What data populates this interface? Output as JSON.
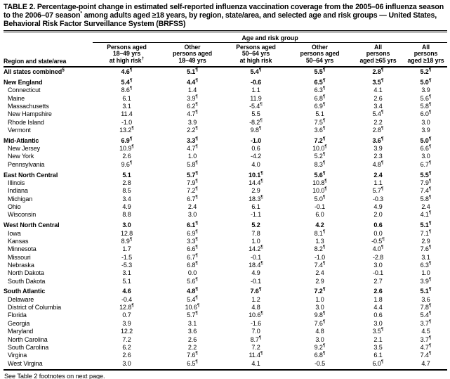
{
  "title": "TABLE 2. Percentage-point change in estimated self-reported influenza vaccination coverage from the 2005–06 influenza season to the 2006–07 season* among adults aged ≥18 years, by region, state/area, and selected age and risk groups — United States, Behavioral Risk Factor Surveillance System (BRFSS)",
  "footer": "See Table 2 footnotes on next page.",
  "table": {
    "group_header": "Age and risk group",
    "row_header": "Region and state/area",
    "columns": [
      [
        "Persons aged",
        "18–49 yrs",
        "at high risk†"
      ],
      [
        "Other",
        "persons aged",
        "18–49 yrs"
      ],
      [
        "Persons aged",
        "50–64 yrs",
        "at high risk"
      ],
      [
        "Other",
        "persons aged",
        "50–64 yrs"
      ],
      [
        "All",
        "persons",
        "aged ≥65 yrs"
      ],
      [
        "All",
        "persons",
        "aged ≥18 yrs"
      ]
    ],
    "rows": [
      {
        "label": "All states combined§",
        "bold": true,
        "gap": false,
        "values": [
          "4.6¶",
          "5.1¶",
          "5.4¶",
          "5.5¶",
          "2.8¶",
          "5.2¶"
        ]
      },
      {
        "label": "New England",
        "bold": true,
        "gap": true,
        "values": [
          "5.4¶",
          "4.4¶",
          "-0.6",
          "6.5¶",
          "3.5¶",
          "5.0¶"
        ]
      },
      {
        "label": "Connecticut",
        "bold": false,
        "gap": false,
        "values": [
          "8.6¶",
          "1.4",
          "1.1",
          "6.3¶",
          "4.1",
          "3.9"
        ]
      },
      {
        "label": "Maine",
        "bold": false,
        "gap": false,
        "values": [
          "6.1",
          "3.9¶",
          "11.9",
          "6.8¶",
          "2.6",
          "5.6¶"
        ]
      },
      {
        "label": "Massachusetts",
        "bold": false,
        "gap": false,
        "values": [
          "3.1",
          "6.2¶",
          "-5.4¶",
          "6.9¶",
          "3.4",
          "5.8¶"
        ]
      },
      {
        "label": "New Hampshire",
        "bold": false,
        "gap": false,
        "values": [
          "11.4",
          "4.7¶",
          "5.5",
          "5.1",
          "5.4¶",
          "6.0¶"
        ]
      },
      {
        "label": "Rhode Island",
        "bold": false,
        "gap": false,
        "values": [
          "-1.0",
          "3.9",
          "-8.2¶",
          "7.5¶",
          "2.2",
          "3.0"
        ]
      },
      {
        "label": "Vermont",
        "bold": false,
        "gap": false,
        "values": [
          "13.2¶",
          "2.2¶",
          "9.8¶",
          "3.6¶",
          "2.8¶",
          "3.9"
        ]
      },
      {
        "label": "Mid-Atlantic",
        "bold": true,
        "gap": true,
        "values": [
          "6.9¶",
          "3.3¶",
          "-1.0",
          "7.2¶",
          "3.6¶",
          "5.0¶"
        ]
      },
      {
        "label": "New Jersey",
        "bold": false,
        "gap": false,
        "values": [
          "10.9¶",
          "4.7¶",
          "0.6",
          "10.0¶",
          "3.9",
          "6.6¶"
        ]
      },
      {
        "label": "New York",
        "bold": false,
        "gap": false,
        "values": [
          "2.6",
          "1.0",
          "-4.2",
          "5.2¶",
          "2.3",
          "3.0"
        ]
      },
      {
        "label": "Pennsylvania",
        "bold": false,
        "gap": false,
        "values": [
          "9.6¶",
          "5.8¶",
          "4.0",
          "8.3¶",
          "4.8¶",
          "6.7¶"
        ]
      },
      {
        "label": "East North Central",
        "bold": true,
        "gap": true,
        "values": [
          "5.1",
          "5.7¶",
          "10.1¶",
          "5.6¶",
          "2.4",
          "5.5¶"
        ]
      },
      {
        "label": "Illinois",
        "bold": false,
        "gap": false,
        "values": [
          "2.8",
          "7.9¶",
          "14.4¶",
          "10.8¶",
          "1.1",
          "7.9¶"
        ]
      },
      {
        "label": "Indiana",
        "bold": false,
        "gap": false,
        "values": [
          "8.5",
          "7.2¶",
          "2.9",
          "10.0¶",
          "5.7¶",
          "7.4¶"
        ]
      },
      {
        "label": "Michigan",
        "bold": false,
        "gap": false,
        "values": [
          "3.4",
          "6.7¶",
          "18.3¶",
          "5.0¶",
          "-0.3",
          "5.8¶"
        ]
      },
      {
        "label": "Ohio",
        "bold": false,
        "gap": false,
        "values": [
          "4.9",
          "2.4",
          "6.1",
          "-0.1",
          "4.9",
          "2.4"
        ]
      },
      {
        "label": "Wisconsin",
        "bold": false,
        "gap": false,
        "values": [
          "8.8",
          "3.0",
          "-1.1",
          "6.0",
          "2.0",
          "4.1¶"
        ]
      },
      {
        "label": "West North Central",
        "bold": true,
        "gap": true,
        "values": [
          "3.0",
          "6.1¶",
          "5.2",
          "4.2",
          "0.6",
          "5.1¶"
        ]
      },
      {
        "label": "Iowa",
        "bold": false,
        "gap": false,
        "values": [
          "12.8",
          "6.9¶",
          "7.8",
          "8.1¶",
          "0.0",
          "7.1¶"
        ]
      },
      {
        "label": "Kansas",
        "bold": false,
        "gap": false,
        "values": [
          "8.9¶",
          "3.3¶",
          "1.0",
          "1.3",
          "-0.5¶",
          "2.9"
        ]
      },
      {
        "label": "Minnesota",
        "bold": false,
        "gap": false,
        "values": [
          "1.7",
          "6.6¶",
          "14.2¶",
          "8.2¶",
          "4.0¶",
          "7.6¶"
        ]
      },
      {
        "label": "Missouri",
        "bold": false,
        "gap": false,
        "values": [
          "-1.5",
          "6.7¶",
          "-0.1",
          "-1.0",
          "-2.8",
          "3.1"
        ]
      },
      {
        "label": "Nebraska",
        "bold": false,
        "gap": false,
        "values": [
          "-5.3",
          "6.8¶",
          "18.4¶",
          "7.4¶",
          "3.0",
          "6.3¶"
        ]
      },
      {
        "label": "North Dakota",
        "bold": false,
        "gap": false,
        "values": [
          "3.1",
          "0.0",
          "4.9",
          "2.4",
          "-0.1",
          "1.0"
        ]
      },
      {
        "label": "South Dakota",
        "bold": false,
        "gap": false,
        "values": [
          "5.1",
          "5.6¶",
          "-0.1",
          "2.9",
          "2.7",
          "3.9¶"
        ]
      },
      {
        "label": "South Atlantic",
        "bold": true,
        "gap": true,
        "values": [
          "4.6",
          "4.8¶",
          "7.6¶",
          "7.2¶",
          "2.6",
          "5.1¶"
        ]
      },
      {
        "label": "Delaware",
        "bold": false,
        "gap": false,
        "values": [
          "-0.4",
          "5.4¶",
          "1.2",
          "1.0",
          "1.8",
          "3.6"
        ]
      },
      {
        "label": "District of Columbia",
        "bold": false,
        "gap": false,
        "values": [
          "12.8¶",
          "10.6¶",
          "4.8",
          "3.0",
          "4.4",
          "7.8¶"
        ]
      },
      {
        "label": "Florida",
        "bold": false,
        "gap": false,
        "values": [
          "0.7",
          "5.7¶",
          "10.6¶",
          "9.8¶",
          "0.6",
          "5.4¶"
        ]
      },
      {
        "label": "Georgia",
        "bold": false,
        "gap": false,
        "values": [
          "3.9",
          "3.1",
          "-1.6",
          "7.6¶",
          "3.0",
          "3.7¶"
        ]
      },
      {
        "label": "Maryland",
        "bold": false,
        "gap": false,
        "values": [
          "12.2",
          "3.6",
          "7.0",
          "4.8",
          "3.5¶",
          "4.5"
        ]
      },
      {
        "label": "North Carolina",
        "bold": false,
        "gap": false,
        "values": [
          "7.2",
          "2.6",
          "8.7¶",
          "3.0",
          "2.1",
          "3.7¶"
        ]
      },
      {
        "label": "South Carolina",
        "bold": false,
        "gap": false,
        "values": [
          "6.2",
          "2.2",
          "7.2",
          "9.2¶",
          "3.5",
          "4.7¶"
        ]
      },
      {
        "label": "Virgina",
        "bold": false,
        "gap": false,
        "values": [
          "2.6",
          "7.6¶",
          "11.4¶",
          "6.8¶",
          "6.1",
          "7.4¶"
        ]
      },
      {
        "label": "West Virgina",
        "bold": false,
        "gap": false,
        "values": [
          "3.0",
          "6.5¶",
          "4.1",
          "-0.5",
          "6.0¶",
          "4.7"
        ]
      }
    ]
  }
}
